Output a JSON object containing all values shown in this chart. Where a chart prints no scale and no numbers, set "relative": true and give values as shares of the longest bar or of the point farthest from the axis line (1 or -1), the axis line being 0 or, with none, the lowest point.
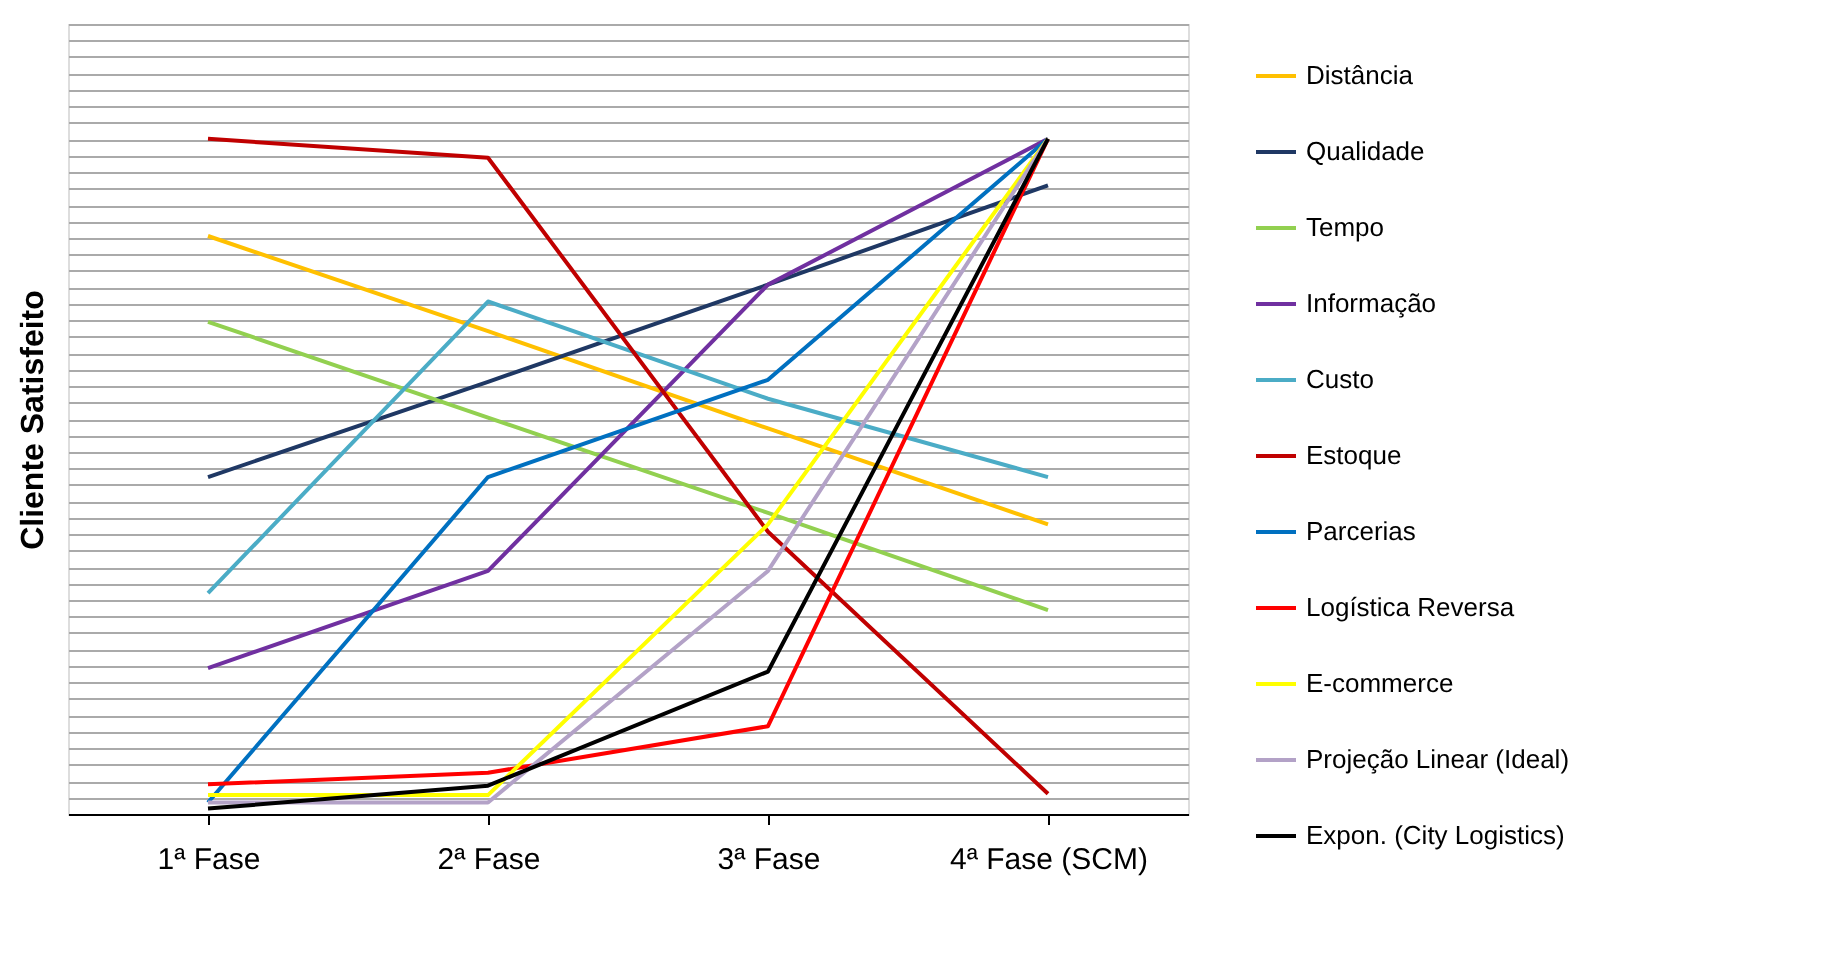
{
  "chart_data": {
    "type": "line",
    "relative": true,
    "ylabel": "Cliente  Satisfeito",
    "categories": [
      "1ª Fase",
      "2ª Fase",
      "3ª Fase",
      "4ª Fase (SCM)"
    ],
    "grid": "y",
    "legend": "right",
    "marker": "none",
    "line_style": "solid",
    "series": [
      {
        "name": "Distância",
        "color": "#ffc000",
        "values": [
          0.856,
          0.715,
          0.571,
          0.429
        ]
      },
      {
        "name": "Qualidade",
        "color": "#1f3864",
        "values": [
          0.499,
          0.64,
          0.784,
          0.931
        ]
      },
      {
        "name": "Tempo",
        "color": "#92d050",
        "values": [
          0.729,
          0.587,
          0.446,
          0.302
        ]
      },
      {
        "name": "Informação",
        "color": "#7030a0",
        "values": [
          0.216,
          0.36,
          0.784,
          1.0
        ]
      },
      {
        "name": "Custo",
        "color": "#4bacc6",
        "values": [
          0.327,
          0.759,
          0.615,
          0.499
        ]
      },
      {
        "name": "Estoque",
        "color": "#c00000",
        "values": [
          1.0,
          0.972,
          0.418,
          0.03
        ]
      },
      {
        "name": "Parcerias",
        "color": "#0070c0",
        "values": [
          0.017,
          0.499,
          0.643,
          1.0
        ]
      },
      {
        "name": "Logística Reversa",
        "color": "#ff0000",
        "values": [
          0.044,
          0.061,
          0.13,
          1.0
        ]
      },
      {
        "name": "E-commerce",
        "color": "#ffff00",
        "values": [
          0.028,
          0.028,
          0.429,
          1.0
        ]
      },
      {
        "name": "Projeção Linear (Ideal)",
        "color": "#b3a2c7",
        "values": [
          0.017,
          0.017,
          0.36,
          1.0
        ]
      },
      {
        "name": "Expon. (City Logistics)",
        "color": "#000000",
        "values": [
          0.008,
          0.042,
          0.211,
          1.0
        ]
      }
    ]
  }
}
